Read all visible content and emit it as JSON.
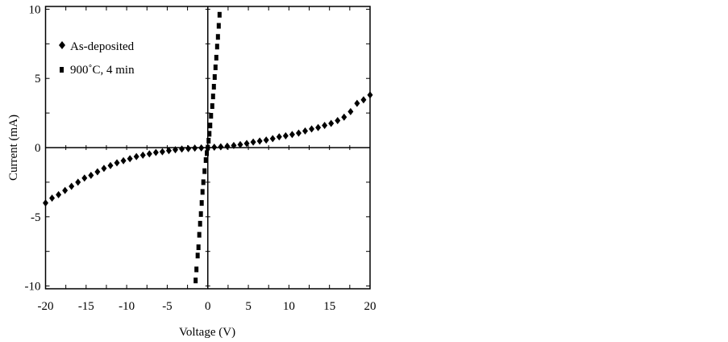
{
  "chart_data": {
    "type": "scatter",
    "title": "",
    "xlabel": "Voltage (V)",
    "ylabel": "Current (mA)",
    "xlim": [
      -20,
      20
    ],
    "ylim": [
      -10.2,
      10.2
    ],
    "xticks": [
      -20,
      -15,
      -10,
      -5,
      0,
      5,
      10,
      15,
      20
    ],
    "yticks": [
      -10,
      -5,
      0,
      5,
      10
    ],
    "grid": false,
    "legend_position": "top-left",
    "series": [
      {
        "name": "As-deposited",
        "marker": "diamond",
        "color": "#000000",
        "x": [
          -20,
          -19.2,
          -18.4,
          -17.6,
          -16.8,
          -16,
          -15.2,
          -14.4,
          -13.6,
          -12.8,
          -12,
          -11.2,
          -10.4,
          -9.6,
          -8.8,
          -8,
          -7.2,
          -6.4,
          -5.6,
          -4.8,
          -4,
          -3.2,
          -2.4,
          -1.6,
          -0.8,
          0,
          0.8,
          1.6,
          2.4,
          3.2,
          4,
          4.8,
          5.6,
          6.4,
          7.2,
          8,
          8.8,
          9.6,
          10.4,
          11.2,
          12,
          12.8,
          13.6,
          14.4,
          15.2,
          16,
          16.8,
          17.6,
          18.4,
          19.2,
          20
        ],
        "y": [
          -4.0,
          -3.65,
          -3.4,
          -3.1,
          -2.8,
          -2.5,
          -2.2,
          -2.0,
          -1.75,
          -1.5,
          -1.3,
          -1.1,
          -0.95,
          -0.8,
          -0.65,
          -0.55,
          -0.45,
          -0.35,
          -0.3,
          -0.22,
          -0.15,
          -0.1,
          -0.07,
          -0.04,
          -0.02,
          0,
          0.03,
          0.06,
          0.1,
          0.15,
          0.22,
          0.3,
          0.4,
          0.47,
          0.55,
          0.65,
          0.78,
          0.85,
          0.95,
          1.05,
          1.2,
          1.35,
          1.45,
          1.6,
          1.75,
          1.95,
          2.2,
          2.6,
          3.2,
          3.45,
          3.8
        ]
      },
      {
        "name": "900˚C, 4 min",
        "marker": "square",
        "color": "#000000",
        "x": [
          -1.5,
          -1.4,
          -1.25,
          -1.15,
          -1.05,
          -0.95,
          -0.85,
          -0.75,
          -0.65,
          -0.55,
          -0.4,
          -0.25,
          -0.12,
          0,
          0.1,
          0.2,
          0.3,
          0.4,
          0.55,
          0.65,
          0.75,
          0.85,
          0.95,
          1.05,
          1.15,
          1.25,
          1.35,
          1.45
        ],
        "y": [
          -9.6,
          -8.8,
          -7.8,
          -7.2,
          -6.3,
          -5.5,
          -4.8,
          -4.0,
          -3.2,
          -2.5,
          -1.7,
          -0.9,
          -0.4,
          0,
          0.5,
          1.0,
          1.6,
          2.3,
          3.0,
          3.7,
          4.4,
          5.1,
          5.8,
          6.5,
          7.3,
          8.0,
          8.8,
          9.6
        ]
      }
    ]
  }
}
